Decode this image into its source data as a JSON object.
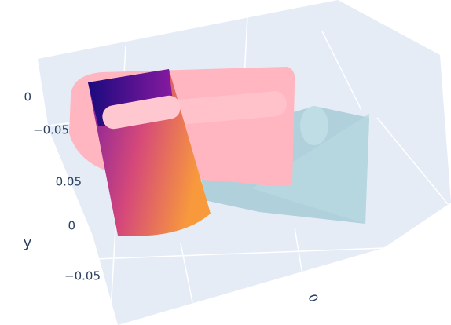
{
  "chart_data": {
    "type": "scatter3d",
    "axes": {
      "z": {
        "ticks": [
          0,
          {
            "value": -0.05,
            "label": "−0.05"
          }
        ]
      },
      "y": {
        "title": "y",
        "ticks": [
          0.05,
          0,
          {
            "value": -0.05,
            "label": "−0.05"
          }
        ]
      },
      "x": {
        "ticks": [
          0
        ]
      }
    }
  }
}
